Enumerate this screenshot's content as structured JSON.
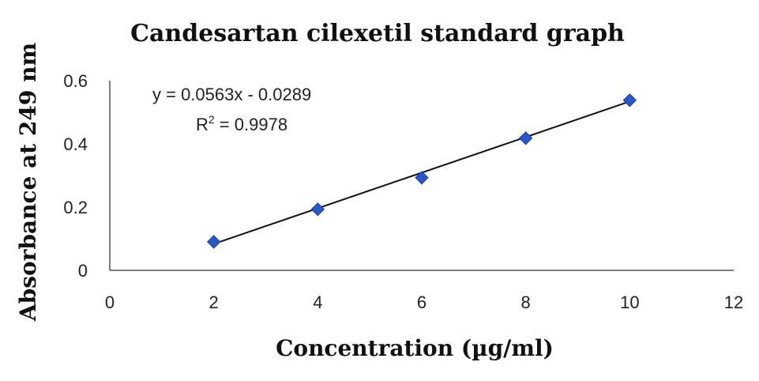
{
  "chart_data": {
    "type": "scatter",
    "title": "Candesartan  cilexetil standard  graph",
    "xlabel": "Concentration  (µg/ml)",
    "ylabel": "Absorbance  at 249 nm",
    "xlim": [
      0,
      12
    ],
    "ylim": [
      0,
      0.6
    ],
    "xticks": [
      "0",
      "2",
      "4",
      "6",
      "8",
      "10",
      "12"
    ],
    "yticks": [
      "0",
      "0.2",
      "0.4",
      "0.6"
    ],
    "grid": false,
    "legend": "none",
    "marker_color": "#2a56c6",
    "series": [
      {
        "x": [
          2,
          4,
          6,
          8,
          10
        ],
        "y": [
          0.09,
          0.193,
          0.293,
          0.418,
          0.538
        ]
      }
    ],
    "trendline": {
      "type": "linear",
      "slope": 0.0563,
      "intercept": -0.0289,
      "equation": "y = 0.0563x - 0.0289",
      "r2_label": "R",
      "r2_sup": "2",
      "r2_value": " = 0.9978"
    }
  }
}
